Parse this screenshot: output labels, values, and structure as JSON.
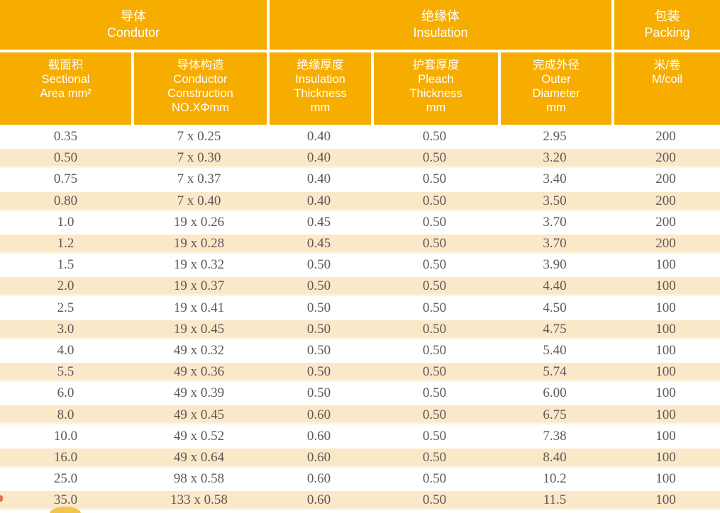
{
  "colors": {
    "header_bg": "#F6AD00",
    "header_text": "#FFFFFF",
    "row_shade": "#FBE8C8",
    "row_shade_edge": "#FDF3DF",
    "data_text": "#5B5857"
  },
  "header": {
    "groups": [
      {
        "zh": "导体",
        "en": "Condutor"
      },
      {
        "zh": "绝缘体",
        "en": "Insulation"
      },
      {
        "zh": "包装",
        "en": "Packing"
      }
    ],
    "columns": [
      {
        "lines": [
          "截面积",
          "Sectional",
          "Area mm²"
        ]
      },
      {
        "lines": [
          "导体构造",
          "Conductor",
          "Construction",
          "NO.XΦmm"
        ]
      },
      {
        "lines": [
          "绝缘厚度",
          "Insulation",
          "Thickness",
          "mm"
        ]
      },
      {
        "lines": [
          "护套厚度",
          "Pleach",
          "Thickness",
          "mm"
        ]
      },
      {
        "lines": [
          "完成外径",
          "Outer",
          "Diameter",
          "mm"
        ]
      },
      {
        "lines": [
          "米/卷",
          "M/coil"
        ]
      }
    ]
  },
  "rows": [
    [
      "0.35",
      "7 x 0.25",
      "0.40",
      "0.50",
      "2.95",
      "200"
    ],
    [
      "0.50",
      "7 x 0.30",
      "0.40",
      "0.50",
      "3.20",
      "200"
    ],
    [
      "0.75",
      "7 x 0.37",
      "0.40",
      "0.50",
      "3.40",
      "200"
    ],
    [
      "0.80",
      "7 x 0.40",
      "0.40",
      "0.50",
      "3.50",
      "200"
    ],
    [
      "1.0",
      "19 x 0.26",
      "0.45",
      "0.50",
      "3.70",
      "200"
    ],
    [
      "1.2",
      "19 x 0.28",
      "0.45",
      "0.50",
      "3.70",
      "200"
    ],
    [
      "1.5",
      "19 x 0.32",
      "0.50",
      "0.50",
      "3.90",
      "100"
    ],
    [
      "2.0",
      "19 x 0.37",
      "0.50",
      "0.50",
      "4.40",
      "100"
    ],
    [
      "2.5",
      "19 x 0.41",
      "0.50",
      "0.50",
      "4.50",
      "100"
    ],
    [
      "3.0",
      "19 x 0.45",
      "0.50",
      "0.50",
      "4.75",
      "100"
    ],
    [
      "4.0",
      "49 x 0.32",
      "0.50",
      "0.50",
      "5.40",
      "100"
    ],
    [
      "5.5",
      "49 x 0.36",
      "0.50",
      "0.50",
      "5.74",
      "100"
    ],
    [
      "6.0",
      "49 x 0.39",
      "0.50",
      "0.50",
      "6.00",
      "100"
    ],
    [
      "8.0",
      "49 x 0.45",
      "0.60",
      "0.50",
      "6.75",
      "100"
    ],
    [
      "10.0",
      "49 x 0.52",
      "0.60",
      "0.50",
      "7.38",
      "100"
    ],
    [
      "16.0",
      "49 x 0.64",
      "0.60",
      "0.50",
      "8.40",
      "100"
    ],
    [
      "25.0",
      "98 x 0.58",
      "0.60",
      "0.50",
      "10.2",
      "100"
    ],
    [
      "35.0",
      "133 x 0.58",
      "0.60",
      "0.50",
      "11.5",
      "100"
    ]
  ]
}
